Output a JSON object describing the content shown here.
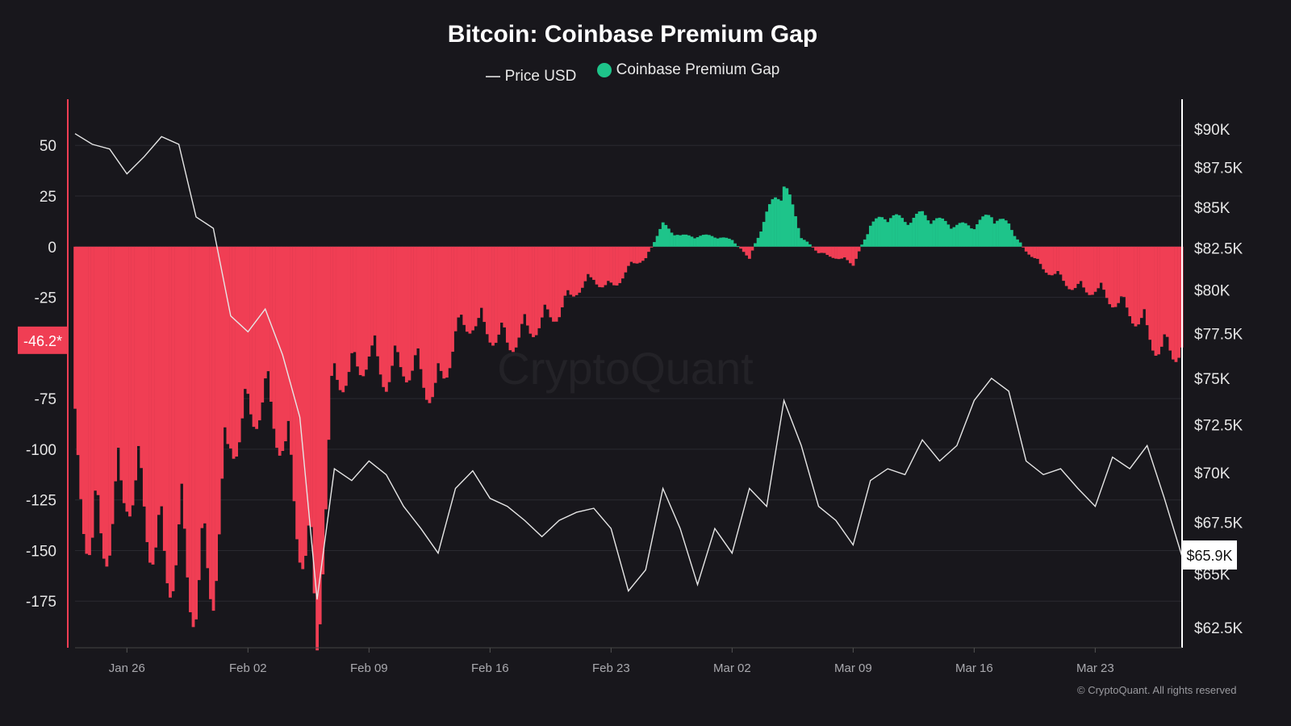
{
  "chart_data": {
    "type": "bar",
    "title": "Bitcoin: Coinbase Premium Gap",
    "legend": [
      {
        "name": "Price USD",
        "color": "#cfcfcf",
        "marker": "line"
      },
      {
        "name": "Coinbase Premium Gap",
        "color": "#1ec48a",
        "marker": "dot"
      }
    ],
    "legend_position": "top-center",
    "watermark": "CryptoQuant",
    "copyright": "© CryptoQuant. All rights reserved",
    "colors": {
      "positive": "#1ec48a",
      "negative": "#f03e54",
      "price": "#e6e6e6",
      "background": "#18171c"
    },
    "x": {
      "start": "2026-01-23",
      "tick_labels": [
        "Jan 26",
        "Feb 02",
        "Feb 09",
        "Feb 16",
        "Feb 23",
        "Mar 02",
        "Mar 09",
        "Mar 16",
        "Mar 23"
      ],
      "tick_day_offsets": [
        3,
        10,
        17,
        24,
        31,
        38,
        45,
        52,
        59
      ]
    },
    "y_left": {
      "label": "Coinbase Premium Gap",
      "ylim": [
        -198,
        72
      ],
      "ticks": [
        50,
        25,
        0,
        -25,
        -75,
        -100,
        -125,
        -150,
        -175
      ],
      "tick_labels": [
        "50",
        "25",
        "0",
        "-25",
        "-75",
        "-100",
        "-125",
        "-150",
        "-175"
      ],
      "current_label": "-46.2*",
      "current_value": -46.2
    },
    "y_right": {
      "label": "Price USD",
      "scale": "log",
      "ylim": [
        61000,
        92500
      ],
      "ticks": [
        90000,
        87500,
        85000,
        82500,
        80000,
        77500,
        75000,
        72500,
        70000,
        67500,
        65000,
        62500
      ],
      "tick_labels": [
        "$90K",
        "$87.5K",
        "$85K",
        "$82.5K",
        "$80K",
        "$77.5K",
        "$75K",
        "$72.5K",
        "$70K",
        "$67.5K",
        "$65K",
        "$62.5K"
      ],
      "current_label": "$65.9K",
      "current_value": 65900
    },
    "series": [
      {
        "name": "Price USD",
        "type": "line",
        "day_offsets_step": 1,
        "values": [
          89700,
          89000,
          88700,
          87100,
          88200,
          89500,
          89000,
          84400,
          83700,
          78500,
          77600,
          78900,
          76300,
          72900,
          63800,
          70200,
          69600,
          70600,
          69900,
          68300,
          67200,
          66000,
          69200,
          70100,
          68700,
          68300,
          67600,
          66800,
          67600,
          68000,
          68200,
          67200,
          64200,
          65200,
          69200,
          67200,
          64500,
          67200,
          66000,
          69200,
          68300,
          73800,
          71400,
          68300,
          67600,
          66400,
          69600,
          70200,
          69900,
          71700,
          70600,
          71400,
          73800,
          75000,
          74300,
          70600,
          69900,
          70200,
          69200,
          68300,
          70800,
          70200,
          71400,
          68700,
          65900
        ]
      },
      {
        "name": "Coinbase Premium Gap",
        "type": "bar",
        "day_offsets_step": 1,
        "values": [
          -100,
          -140,
          -130,
          -110,
          -120,
          -150,
          -140,
          -160,
          -150,
          -90,
          -80,
          -70,
          -90,
          -130,
          -175,
          -60,
          -60,
          -50,
          -60,
          -55,
          -60,
          -70,
          -40,
          -35,
          -40,
          -45,
          -40,
          -35,
          -30,
          -20,
          -15,
          -20,
          -10,
          -5,
          10,
          5,
          5,
          5,
          3,
          -5,
          15,
          30,
          5,
          -3,
          -5,
          -8,
          10,
          15,
          12,
          15,
          12,
          10,
          10,
          15,
          10,
          -2,
          -10,
          -15,
          -20,
          -20,
          -25,
          -30,
          -40,
          -50,
          -46.2
        ]
      }
    ]
  }
}
